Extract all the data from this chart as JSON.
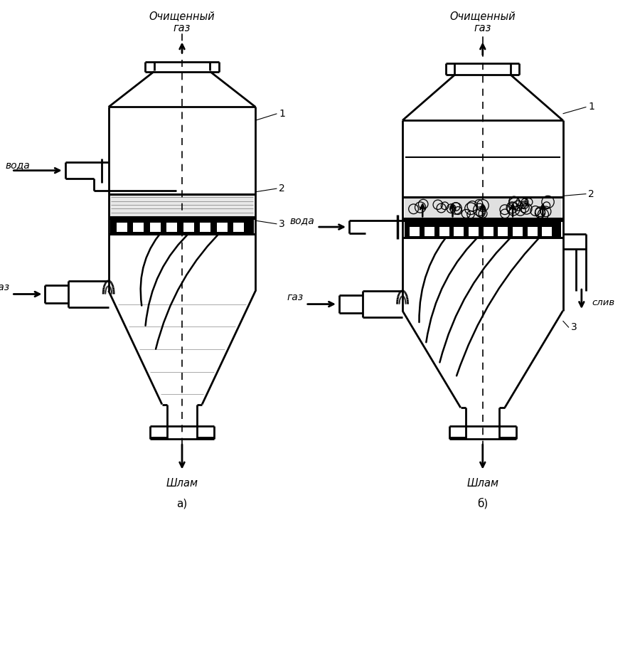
{
  "title_a": "а)",
  "title_b": "б)",
  "label_clean_gas_a": "Очищенный\nгаз",
  "label_clean_gas_b": "Очищенный\nгаз",
  "label_water_a": "вода",
  "label_water_b": "вода",
  "label_gas_a": "газ",
  "label_gas_b": "газ",
  "label_shlam_a": "Шлам",
  "label_shlam_b": "Шлам",
  "label_sliv": "слив",
  "label_1": "1",
  "label_2": "2",
  "label_3": "3"
}
